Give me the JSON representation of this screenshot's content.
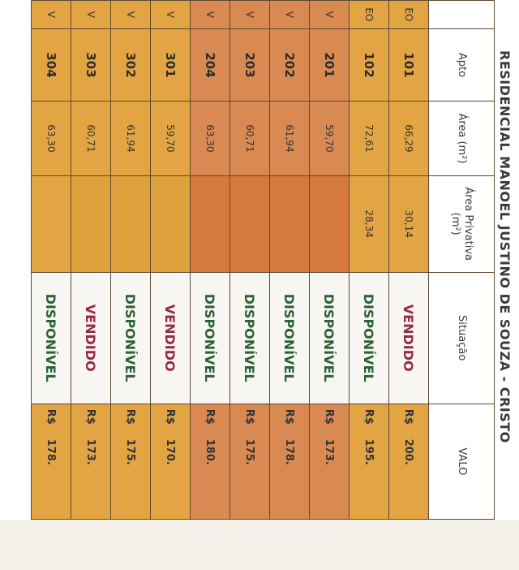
{
  "title": "RESIDENCIAL MANOEL JUSTINO DE SOUZA - CRISTO",
  "headers": {
    "tipo": "",
    "apto": "Apto",
    "area": "Área (m²)",
    "privativa": "Área Privativa (m²)",
    "situacao": "Situação",
    "valor": "VALO"
  },
  "currency": "R$",
  "rows": [
    {
      "tipo": "EO",
      "apto": "101",
      "area": "66,29",
      "privativa": "30,14",
      "situacao": "VENDIDO",
      "valor": "200."
    },
    {
      "tipo": "EO",
      "apto": "102",
      "area": "72,61",
      "privativa": "28,34",
      "situacao": "DISPONÍVEL",
      "valor": "195."
    },
    {
      "tipo": "V",
      "apto": "201",
      "area": "59,70",
      "privativa": "",
      "situacao": "DISPONÍVEL",
      "valor": "173."
    },
    {
      "tipo": "V",
      "apto": "202",
      "area": "61,94",
      "privativa": "",
      "situacao": "DISPONÍVEL",
      "valor": "178."
    },
    {
      "tipo": "V",
      "apto": "203",
      "area": "60,71",
      "privativa": "",
      "situacao": "DISPONÍVEL",
      "valor": "175."
    },
    {
      "tipo": "V",
      "apto": "204",
      "area": "63,30",
      "privativa": "",
      "situacao": "DISPONÍVEL",
      "valor": "180."
    },
    {
      "tipo": "V",
      "apto": "301",
      "area": "59,70",
      "privativa": "",
      "situacao": "VENDIDO",
      "valor": "170."
    },
    {
      "tipo": "V",
      "apto": "302",
      "area": "61,94",
      "privativa": "",
      "situacao": "DISPONÍVEL",
      "valor": "175."
    },
    {
      "tipo": "V",
      "apto": "303",
      "area": "60,71",
      "privativa": "",
      "situacao": "VENDIDO",
      "valor": "173."
    },
    {
      "tipo": "V",
      "apto": "304",
      "area": "63,30",
      "privativa": "",
      "situacao": "DISPONÍVEL",
      "valor": "178."
    }
  ],
  "colors": {
    "gold_row": "#e3a543",
    "orange_row": "#d98a53",
    "disponivel_text": "#2e6138",
    "vendido_text": "#962a46"
  }
}
